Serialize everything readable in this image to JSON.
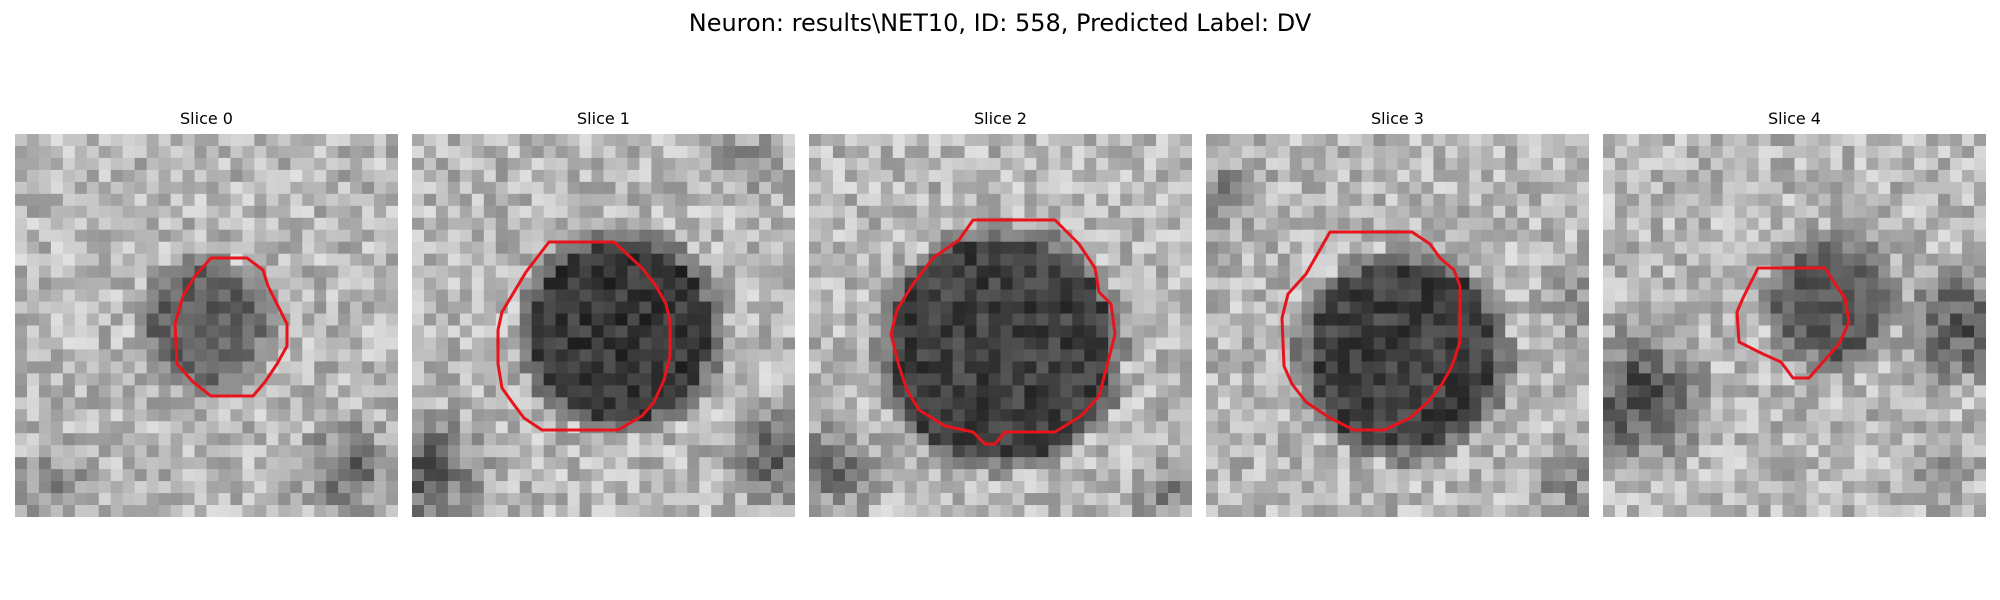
{
  "figure": {
    "title": "Neuron: results\\NET10, ID: 558, Predicted Label: DV"
  },
  "panels": [
    {
      "title": "Slice 0"
    },
    {
      "title": "Slice 1"
    },
    {
      "title": "Slice 2"
    },
    {
      "title": "Slice 3"
    },
    {
      "title": "Slice 4"
    }
  ],
  "colors": {
    "contour": "#e8141c",
    "background": "#ffffff"
  }
}
